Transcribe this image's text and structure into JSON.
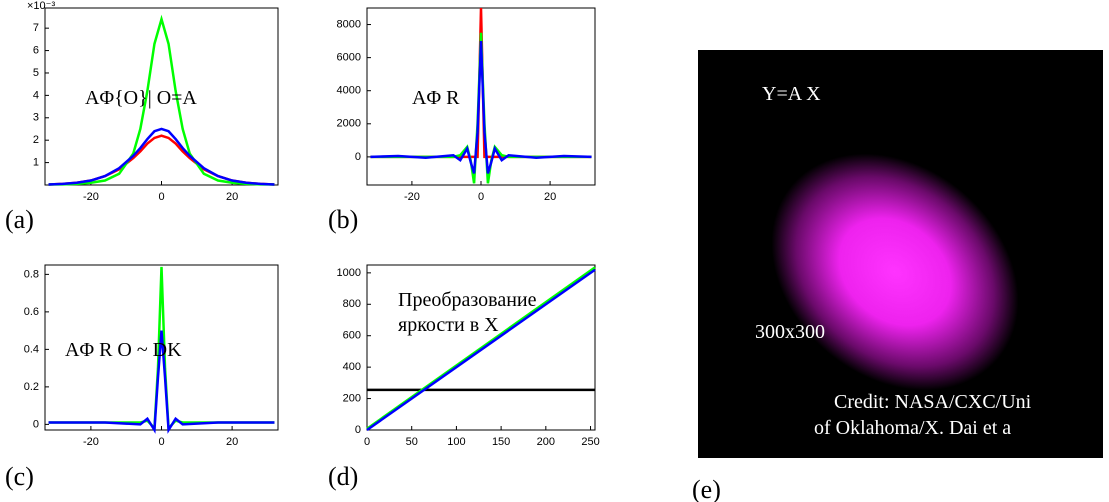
{
  "chart_data": [
    {
      "type": "line",
      "panel_label": "(a)",
      "annotation": "AΦ{O}| O=A",
      "y_multiplier": "×10⁻³",
      "x": [
        -32,
        -28,
        -24,
        -20,
        -16,
        -12,
        -8,
        -6,
        -4,
        -2,
        0,
        2,
        4,
        6,
        8,
        12,
        16,
        20,
        24,
        28,
        32
      ],
      "xlim": [
        -33,
        33
      ],
      "xticks": [
        -20,
        0,
        20
      ],
      "ylim": [
        0,
        7.9
      ],
      "yticks": [
        1,
        2,
        3,
        4,
        5,
        6,
        7
      ],
      "series": [
        {
          "color": "#ff0000",
          "values": [
            0.02,
            0.05,
            0.1,
            0.2,
            0.4,
            0.7,
            1.2,
            1.5,
            1.85,
            2.1,
            2.2,
            2.1,
            1.85,
            1.5,
            1.2,
            0.7,
            0.4,
            0.2,
            0.1,
            0.05,
            0.02
          ]
        },
        {
          "color": "#00ff00",
          "values": [
            0.02,
            0.03,
            0.05,
            0.1,
            0.2,
            0.5,
            1.4,
            2.5,
            4.2,
            6.3,
            7.4,
            6.3,
            4.2,
            2.5,
            1.4,
            0.5,
            0.2,
            0.1,
            0.05,
            0.03,
            0.02
          ]
        },
        {
          "color": "#0000ff",
          "values": [
            0.02,
            0.05,
            0.1,
            0.2,
            0.4,
            0.75,
            1.3,
            1.65,
            2.05,
            2.4,
            2.5,
            2.4,
            2.05,
            1.65,
            1.3,
            0.75,
            0.4,
            0.2,
            0.1,
            0.05,
            0.02
          ]
        }
      ]
    },
    {
      "type": "line",
      "panel_label": "(b)",
      "annotation": "AΦ R",
      "x": [
        -32,
        -24,
        -16,
        -8,
        -6,
        -4,
        -3,
        -2,
        -1,
        0,
        1,
        2,
        3,
        4,
        6,
        8,
        16,
        24,
        32
      ],
      "xlim": [
        -33,
        33
      ],
      "xticks": [
        -20,
        0,
        20
      ],
      "ylim": [
        -1700,
        9000
      ],
      "yticks": [
        0,
        2000,
        4000,
        6000,
        8000
      ],
      "series": [
        {
          "color": "#ff0000",
          "values": [
            0,
            0,
            0,
            0,
            0,
            0,
            0,
            0,
            0,
            9000,
            0,
            0,
            0,
            0,
            0,
            0,
            0,
            0,
            0
          ]
        },
        {
          "color": "#00ff00",
          "values": [
            0,
            0,
            0,
            0,
            100,
            600,
            -200,
            -1600,
            2000,
            7500,
            2000,
            -1600,
            -200,
            600,
            100,
            0,
            0,
            0,
            0
          ]
        },
        {
          "color": "#0000ff",
          "values": [
            0,
            50,
            -50,
            100,
            -200,
            500,
            -300,
            -1000,
            1500,
            7000,
            1500,
            -1000,
            -300,
            500,
            -200,
            100,
            -50,
            50,
            0
          ]
        }
      ]
    },
    {
      "type": "line",
      "panel_label": "(c)",
      "annotation": "AΦ R O ~ DK",
      "x": [
        -32,
        -16,
        -6,
        -4,
        -2,
        -1,
        0,
        1,
        2,
        4,
        6,
        16,
        32
      ],
      "xlim": [
        -33,
        33
      ],
      "xticks": [
        -20,
        0,
        20
      ],
      "ylim": [
        -0.03,
        0.85
      ],
      "yticks": [
        0,
        0.2,
        0.4,
        0.6,
        0.8
      ],
      "series": [
        {
          "color": "#00ff00",
          "values": [
            0.01,
            0.01,
            0.01,
            0.02,
            -0.02,
            0.3,
            0.84,
            0.3,
            -0.02,
            0.02,
            0.01,
            0.01,
            0.01
          ]
        },
        {
          "color": "#0000ff",
          "values": [
            0.01,
            0.01,
            0,
            0.03,
            -0.03,
            0.25,
            0.5,
            0.25,
            -0.03,
            0.03,
            0,
            0.01,
            0.01
          ]
        }
      ]
    },
    {
      "type": "line",
      "panel_label": "(d)",
      "annotation": [
        "Преобразование",
        "яркости в X"
      ],
      "x": [
        0,
        255
      ],
      "xlim": [
        0,
        255
      ],
      "xticks": [
        0,
        50,
        100,
        150,
        200,
        250
      ],
      "ylim": [
        0,
        1050
      ],
      "yticks": [
        0,
        200,
        400,
        600,
        800,
        1000
      ],
      "series": [
        {
          "color": "#000000",
          "values": [
            255,
            255
          ]
        },
        {
          "color": "#00ff00",
          "values": [
            8,
            1035
          ]
        },
        {
          "color": "#0000ff",
          "values": [
            0,
            1020
          ]
        }
      ]
    }
  ],
  "image": {
    "panel_label": "(e)",
    "texts": [
      "Y=A X",
      "300x300",
      "Credit: NASA/CXC/Uni",
      "of Oklahoma/X. Dai et a"
    ]
  }
}
